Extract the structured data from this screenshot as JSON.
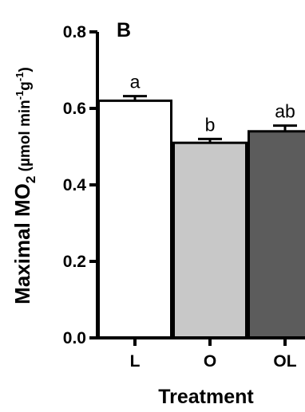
{
  "chart_data": {
    "type": "bar",
    "panel_label": "B",
    "categories": [
      "L",
      "O",
      "OL"
    ],
    "values": [
      0.62,
      0.51,
      0.54
    ],
    "errors": [
      0.012,
      0.01,
      0.015
    ],
    "significance": [
      "a",
      "b",
      "ab"
    ],
    "bar_colors": [
      "#ffffff",
      "#c8c8c8",
      "#5c5c5c"
    ],
    "xlabel": "Treatment",
    "ylabel": {
      "main": "Maximal MO",
      "sub": "2",
      "unit_pre": " (µmol min",
      "exp1": "-1",
      "unit_mid": "g",
      "exp2": "-1",
      "unit_post": ")"
    },
    "ylim": [
      0,
      0.8
    ],
    "yticks": [
      "0.0",
      "0.2",
      "0.4",
      "0.6",
      "0.8"
    ],
    "grid": false
  }
}
